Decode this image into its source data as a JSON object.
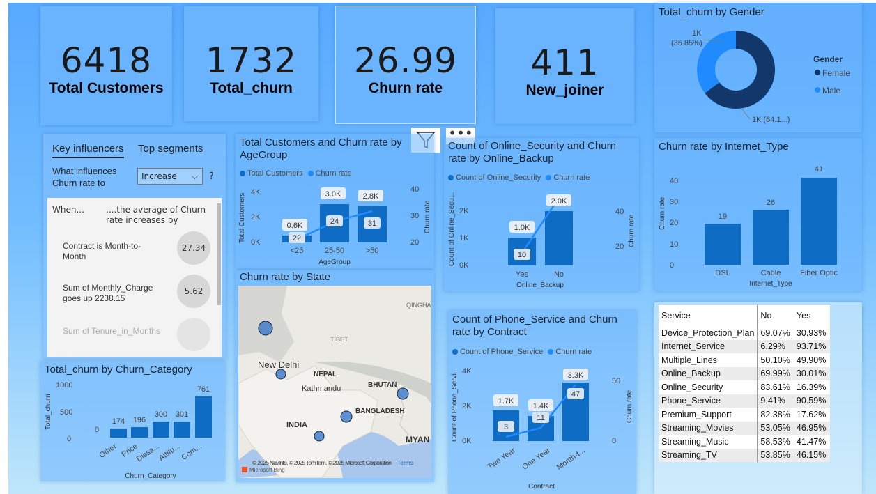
{
  "kpis": [
    {
      "value": "6418",
      "label": "Total Customers"
    },
    {
      "value": "1732",
      "label": "Total_churn"
    },
    {
      "value": "26.99",
      "label": "Churn rate"
    },
    {
      "value": "411",
      "label": "New_joiner"
    }
  ],
  "key_influencers": {
    "tab_1": "Key influencers",
    "tab_2": "Top segments",
    "question": "What influences Churn rate to",
    "dropdown_value": "Increase",
    "help": "?",
    "col_when": "When...",
    "col_avg": "....the average of Churn rate increases by",
    "items": [
      {
        "text": "Contract is Month-to-Month",
        "value": "27.34"
      },
      {
        "text": "Sum of Monthly_Charge goes up 2238.15",
        "value": "5.62"
      },
      {
        "text": "Sum of Tenure_in_Months",
        "value": ""
      }
    ]
  },
  "gender": {
    "title": "Total_churn by Gender",
    "legend_title": "Gender",
    "female_label": "Female",
    "male_label": "Male",
    "male_value": "1K",
    "male_pct": "(35.85%)",
    "female_value": "1K (64.1...)",
    "colors": {
      "female": "#12386b",
      "male": "#1f8bff"
    }
  },
  "age_chart": {
    "title": "Total Customers and Churn rate by AgeGroup",
    "legend_a": "Total Customers",
    "legend_b": "Churn rate",
    "y_left": "Total Customers",
    "y_right": "Churn rate",
    "xlabel": "AgeGroup",
    "ticks_left": [
      "0K",
      "2K",
      "4K"
    ],
    "ticks_right": [
      "20",
      "30",
      "40"
    ],
    "categories": [
      "<25",
      "25-50",
      ">50"
    ],
    "bar_labels": [
      "0.6K",
      "3.0K",
      "2.8K"
    ],
    "rate_labels": [
      "22",
      "24",
      "31"
    ]
  },
  "security_chart": {
    "title": "Count of Online_Security and Churn rate by Online_Backup",
    "legend_a": "Count of Online_Security",
    "legend_b": "Churn rate",
    "y_left": "Count of Online_Secu...",
    "y_right": "Churn rate",
    "xlabel": "Online_Backup",
    "ticks_left": [
      "0K",
      "1K",
      "2K"
    ],
    "ticks_right": [
      "20",
      "40"
    ],
    "categories": [
      "Yes",
      "No"
    ],
    "bar_labels": [
      "1.0K",
      "2.0K"
    ],
    "rate_labels": [
      "10",
      ""
    ]
  },
  "internet_chart": {
    "title": "Churn rate by Internet_Type",
    "ylabel": "Churn rate",
    "xlabel": "Internet_Type",
    "ticks": [
      "0",
      "10",
      "20",
      "30",
      "40"
    ],
    "categories": [
      "DSL",
      "Cable",
      "Fiber Optic"
    ],
    "values": [
      "19",
      "26",
      "41"
    ]
  },
  "state_map": {
    "title": "Churn rate by State",
    "labels": {
      "qinghai": "QINGHA",
      "tibet": "TIBET",
      "new_delhi": "New Delhi",
      "nepal": "NEPAL",
      "kathmandu": "Kathmandu",
      "bhutan": "BHUTAN",
      "bangladesh": "BANGLADESH",
      "india": "INDIA",
      "myanmar": "MYAN"
    },
    "attribution": "© 2025 NavInfo, © 2025 TomTom, © 2025 Microsoft Corporation",
    "terms": "Terms",
    "bing": "Microsoft Bing"
  },
  "category_chart": {
    "title": "Total_churn by Churn_Category",
    "ylabel": "Total_churn",
    "xlabel": "Churn_Category",
    "ticks": [
      "0",
      "500",
      "1000"
    ],
    "categories": [
      "Other",
      "Price",
      "Dissa...",
      "Attitu...",
      "Com..."
    ],
    "values": [
      "174",
      "196",
      "300",
      "301",
      "761"
    ],
    "zero_label": "0"
  },
  "phone_chart": {
    "title": "Count of Phone_Service and Churn rate by Contract",
    "legend_a": "Count of Phone_Service",
    "legend_b": "Churn rate",
    "y_left": "Count of Phone_Servi...",
    "y_right": "Churn rate",
    "xlabel": "Contract",
    "ticks_left": [
      "0K",
      "2K",
      "4K"
    ],
    "ticks_right": [
      "0",
      "50"
    ],
    "categories": [
      "Two Year",
      "One Year",
      "Month-t..."
    ],
    "bar_labels": [
      "1.7K",
      "1.4K",
      "3.3K"
    ],
    "rate_labels": [
      "3",
      "11",
      "47"
    ]
  },
  "service_table": {
    "headers": [
      "Service",
      "No",
      "Yes"
    ],
    "rows": [
      [
        "Device_Protection_Plan",
        "69.07%",
        "30.93%"
      ],
      [
        "Internet_Service",
        "6.29%",
        "93.71%"
      ],
      [
        "Multiple_Lines",
        "50.10%",
        "49.90%"
      ],
      [
        "Online_Backup",
        "69.99%",
        "30.01%"
      ],
      [
        "Online_Security",
        "83.61%",
        "16.39%"
      ],
      [
        "Phone_Service",
        "9.41%",
        "90.59%"
      ],
      [
        "Premium_Support",
        "82.38%",
        "17.62%"
      ],
      [
        "Streaming_Movies",
        "53.05%",
        "46.95%"
      ],
      [
        "Streaming_Music",
        "58.53%",
        "41.47%"
      ],
      [
        "Streaming_TV",
        "53.85%",
        "46.15%"
      ]
    ]
  },
  "colors": {
    "bar": "#0f6cc4",
    "line": "#1f8bff",
    "accent": "#12386b"
  }
}
